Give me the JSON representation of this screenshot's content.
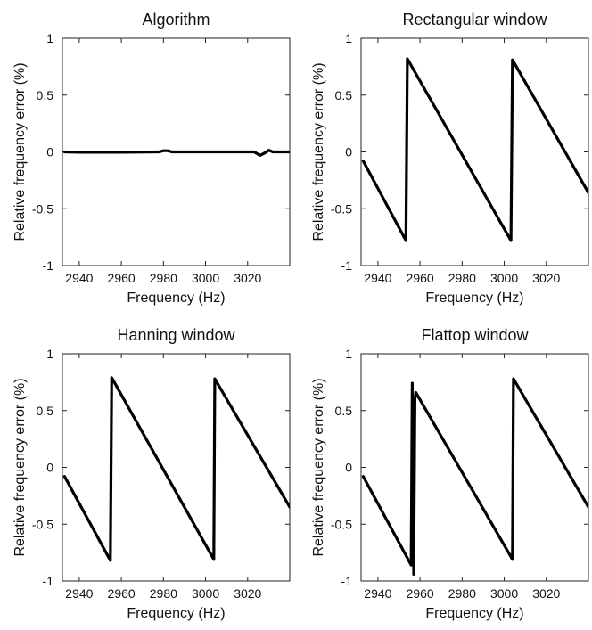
{
  "chart_data": [
    {
      "type": "line",
      "title": "Algorithm",
      "xlabel": "Frequency (Hz)",
      "ylabel": "Relative frequency error (%)",
      "xlim": [
        2932,
        3040
      ],
      "ylim": [
        -1,
        1
      ],
      "xticks": [
        2940,
        2960,
        2980,
        3000,
        3020
      ],
      "yticks": [
        -1,
        -0.5,
        0,
        0.5,
        1
      ],
      "grid": false,
      "series": [
        {
          "color": "#000000",
          "x": [
            2933,
            2940,
            2960,
            2978,
            2980,
            2982,
            2984,
            3000,
            3020,
            3023,
            3025,
            3026,
            3027,
            3028,
            3029,
            3030,
            3032,
            3040
          ],
          "y": [
            0,
            -0.003,
            -0.003,
            0.0,
            0.01,
            0.01,
            0.0,
            0.0,
            0.0,
            0.0,
            -0.02,
            -0.03,
            -0.02,
            -0.01,
            0.0,
            0.015,
            0.0,
            0.0
          ]
        }
      ]
    },
    {
      "type": "line",
      "title": "Rectangular window",
      "xlabel": "Frequency (Hz)",
      "ylabel": "Relative frequency error (%)",
      "xlim": [
        2932,
        3040
      ],
      "ylim": [
        -1,
        1
      ],
      "xticks": [
        2940,
        2960,
        2980,
        3000,
        3020
      ],
      "yticks": [
        -1,
        -0.5,
        0,
        0.5,
        1
      ],
      "grid": false,
      "series": [
        {
          "color": "#000000",
          "x": [
            2933,
            2953.3,
            2954,
            3003.2,
            3003.9,
            3040
          ],
          "y": [
            -0.08,
            -0.78,
            0.82,
            -0.78,
            0.81,
            -0.36
          ]
        }
      ]
    },
    {
      "type": "line",
      "title": "Hanning window",
      "xlabel": "Frequency (Hz)",
      "ylabel": "Relative frequency error (%)",
      "xlim": [
        2932,
        3040
      ],
      "ylim": [
        -1,
        1
      ],
      "xticks": [
        2940,
        2960,
        2980,
        3000,
        3020
      ],
      "yticks": [
        -1,
        -0.5,
        0,
        0.5,
        1
      ],
      "grid": false,
      "series": [
        {
          "color": "#000000",
          "x": [
            2933,
            2954.8,
            2955.4,
            3003.9,
            3004.4,
            3040
          ],
          "y": [
            -0.08,
            -0.82,
            0.79,
            -0.81,
            0.78,
            -0.35
          ]
        }
      ]
    },
    {
      "type": "line",
      "title": "Flattop window",
      "xlabel": "Frequency (Hz)",
      "ylabel": "Relative frequency error (%)",
      "xlim": [
        2932,
        3040
      ],
      "ylim": [
        -1,
        1
      ],
      "xticks": [
        2940,
        2960,
        2980,
        3000,
        3020
      ],
      "yticks": [
        -1,
        -0.5,
        0,
        0.5,
        1
      ],
      "grid": false,
      "series": [
        {
          "color": "#000000",
          "x": [
            2933,
            2955.8,
            2956.3,
            2957.0,
            2957.6,
            2958.0,
            3003.9,
            3004.4,
            3040
          ],
          "y": [
            -0.08,
            -0.86,
            0.74,
            -0.94,
            0.6,
            0.66,
            -0.81,
            0.78,
            -0.35
          ]
        }
      ]
    }
  ]
}
